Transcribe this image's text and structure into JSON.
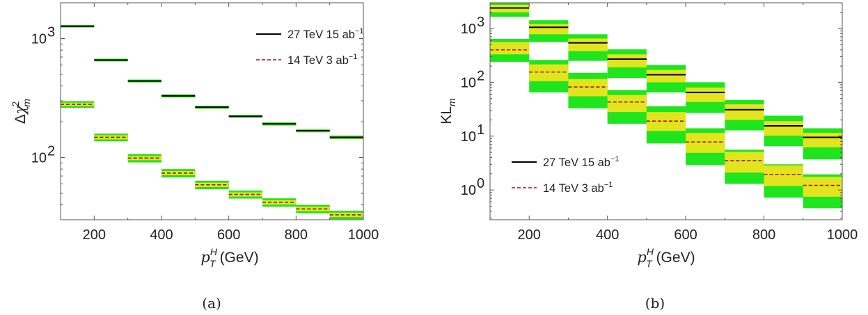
{
  "colors": {
    "band_outer": "#1ee51e",
    "band_inner": "#e2e51e",
    "line_27": "#000000",
    "line_14": "#9b1414"
  },
  "chart_data": [
    {
      "id": "a",
      "type": "line",
      "caption": "(a)",
      "xlabel": "p_T^H (GeV)",
      "ylabel": "Δχ²_m",
      "xlim": [
        100,
        1000
      ],
      "ylim": [
        30,
        2000
      ],
      "log_y": true,
      "grid": false,
      "legend_position": "top-right",
      "x_ticks": [
        200,
        400,
        600,
        800,
        1000
      ],
      "y_ticks": [
        {
          "value": 100,
          "base": "10",
          "exp": "2"
        },
        {
          "value": 1000,
          "base": "10",
          "exp": "3"
        }
      ],
      "bins": [
        [
          100,
          200
        ],
        [
          200,
          300
        ],
        [
          300,
          400
        ],
        [
          400,
          500
        ],
        [
          500,
          600
        ],
        [
          600,
          700
        ],
        [
          700,
          800
        ],
        [
          800,
          900
        ],
        [
          900,
          1000
        ]
      ],
      "series": [
        {
          "name": "27 TeV 15 ab⁻¹",
          "style": "solid",
          "values": [
            1270,
            660,
            440,
            330,
            265,
            222,
            192,
            168,
            148
          ],
          "inner_band": [
            [
              1255,
              1285
            ],
            [
              652,
              668
            ],
            [
              434,
              446
            ],
            [
              325,
              335
            ],
            [
              261,
              269
            ],
            [
              219,
              225
            ],
            [
              189,
              195
            ],
            [
              165,
              171
            ],
            [
              145,
              151
            ]
          ],
          "outer_band": [
            [
              1240,
              1300
            ],
            [
              643,
              677
            ],
            [
              428,
              452
            ],
            [
              320,
              340
            ],
            [
              257,
              273
            ],
            [
              216,
              228
            ],
            [
              186,
              198
            ],
            [
              163,
              173
            ],
            [
              143,
              153
            ]
          ]
        },
        {
          "name": "14 TeV 3 ab⁻¹",
          "style": "dashed",
          "values": [
            280,
            148,
            99,
            74,
            59,
            49,
            42,
            37,
            33
          ],
          "inner_band": [
            [
              271,
              289
            ],
            [
              142,
              154
            ],
            [
              95,
              103
            ],
            [
              71,
              77
            ],
            [
              56.5,
              61.5
            ],
            [
              47,
              51
            ],
            [
              40.2,
              43.8
            ],
            [
              35.4,
              38.6
            ],
            [
              31.6,
              34.4
            ]
          ],
          "outer_band": [
            [
              262,
              298
            ],
            [
              137,
              159
            ],
            [
              91,
              107
            ],
            [
              68,
              80
            ],
            [
              54.2,
              63.8
            ],
            [
              45.2,
              52.8
            ],
            [
              38.6,
              45.4
            ],
            [
              34,
              40
            ],
            [
              30.3,
              35.7
            ]
          ]
        }
      ]
    },
    {
      "id": "b",
      "type": "line",
      "caption": "(b)",
      "xlabel": "p_T^H (GeV)",
      "ylabel": "KL_m",
      "xlim": [
        100,
        1000
      ],
      "ylim": [
        0.28,
        3000
      ],
      "log_y": true,
      "grid": false,
      "legend_position": "bottom-left",
      "x_ticks": [
        200,
        400,
        600,
        800,
        1000
      ],
      "y_ticks": [
        {
          "value": 1,
          "base": "10",
          "exp": "0"
        },
        {
          "value": 10,
          "base": "10",
          "exp": "1"
        },
        {
          "value": 100,
          "base": "10",
          "exp": "2"
        },
        {
          "value": 1000,
          "base": "10",
          "exp": "3"
        }
      ],
      "bins": [
        [
          100,
          200
        ],
        [
          200,
          300
        ],
        [
          300,
          400
        ],
        [
          400,
          500
        ],
        [
          500,
          600
        ],
        [
          600,
          700
        ],
        [
          700,
          800
        ],
        [
          800,
          900
        ],
        [
          900,
          1000
        ]
      ],
      "series": [
        {
          "name": "27 TeV 15 ab⁻¹",
          "style": "solid",
          "values": [
            2400,
            1050,
            540,
            270,
            138,
            65,
            31,
            15.5,
            9.5
          ],
          "inner_band": [
            [
              2000,
              2750
            ],
            [
              780,
              1210
            ],
            [
              380,
              650
            ],
            [
              190,
              330
            ],
            [
              100,
              170
            ],
            [
              43,
              80
            ],
            [
              20,
              39
            ],
            [
              10.2,
              19
            ],
            [
              6.2,
              11.5
            ]
          ],
          "outer_band": [
            [
              1650,
              3000
            ],
            [
              560,
              1420
            ],
            [
              250,
              780
            ],
            [
              120,
              410
            ],
            [
              65,
              210
            ],
            [
              27,
              100
            ],
            [
              12.8,
              47
            ],
            [
              6.5,
              24
            ],
            [
              3.7,
              14
            ]
          ]
        },
        {
          "name": "14 TeV 3 ab⁻¹",
          "style": "dashed",
          "values": [
            400,
            155,
            82,
            43,
            19,
            7.8,
            3.5,
            1.95,
            1.22
          ],
          "inner_band": [
            [
              330,
              560
            ],
            [
              105,
              215
            ],
            [
              55,
              115
            ],
            [
              28,
              58
            ],
            [
              12.5,
              28
            ],
            [
              4.9,
              11.5
            ],
            [
              2.1,
              5.1
            ],
            [
              1.18,
              2.85
            ],
            [
              0.75,
              1.75
            ]
          ],
          "outer_band": [
            [
              240,
              640
            ],
            [
              65,
              260
            ],
            [
              33,
              150
            ],
            [
              17,
              72
            ],
            [
              7.3,
              36
            ],
            [
              2.9,
              14
            ],
            [
              1.3,
              5.6
            ],
            [
              0.72,
              3.0
            ],
            [
              0.46,
              1.95
            ]
          ]
        }
      ]
    }
  ]
}
